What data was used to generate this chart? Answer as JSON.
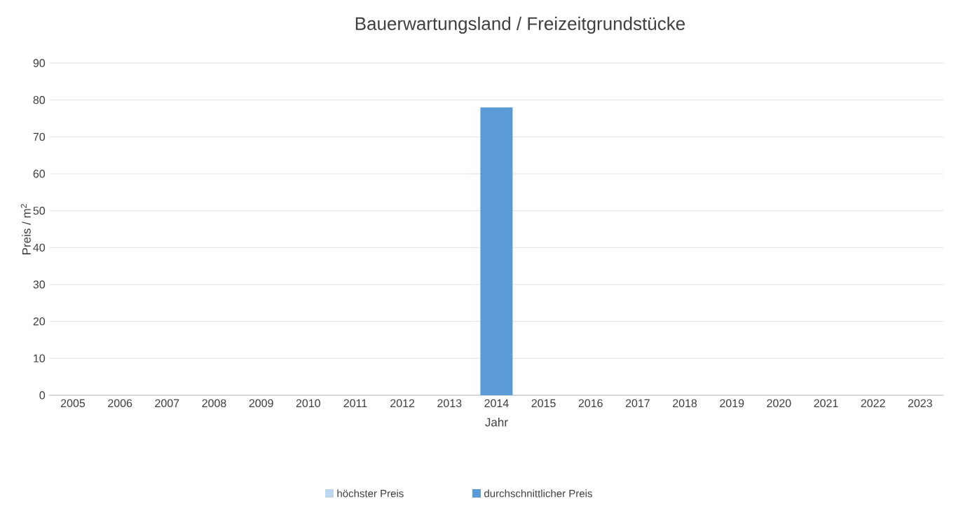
{
  "chart_data": {
    "type": "bar",
    "title": "Bauerwartungsland / Freizeitgrundstücke",
    "xlabel": "Jahr",
    "ylabel": "Preis / m$^{2}$",
    "categories": [
      "2005",
      "2006",
      "2007",
      "2008",
      "2009",
      "2010",
      "2011",
      "2012",
      "2013",
      "2014",
      "2015",
      "2016",
      "2017",
      "2018",
      "2019",
      "2020",
      "2021",
      "2022",
      "2023"
    ],
    "series": [
      {
        "name": "höchster Preis",
        "color": "#bdd7ee",
        "values": [
          null,
          null,
          null,
          null,
          null,
          null,
          null,
          null,
          null,
          null,
          null,
          null,
          null,
          null,
          null,
          null,
          null,
          null,
          null
        ]
      },
      {
        "name": "durchschnittlicher Preis",
        "color": "#5b9bd5",
        "values": [
          null,
          null,
          null,
          null,
          null,
          null,
          null,
          null,
          null,
          78,
          null,
          null,
          null,
          null,
          null,
          null,
          null,
          null,
          null
        ]
      }
    ],
    "ylim": [
      0,
      90
    ],
    "yticks": [
      0,
      10,
      20,
      30,
      40,
      50,
      60,
      70,
      80,
      90
    ],
    "grid": "y",
    "legend": "bottom"
  }
}
